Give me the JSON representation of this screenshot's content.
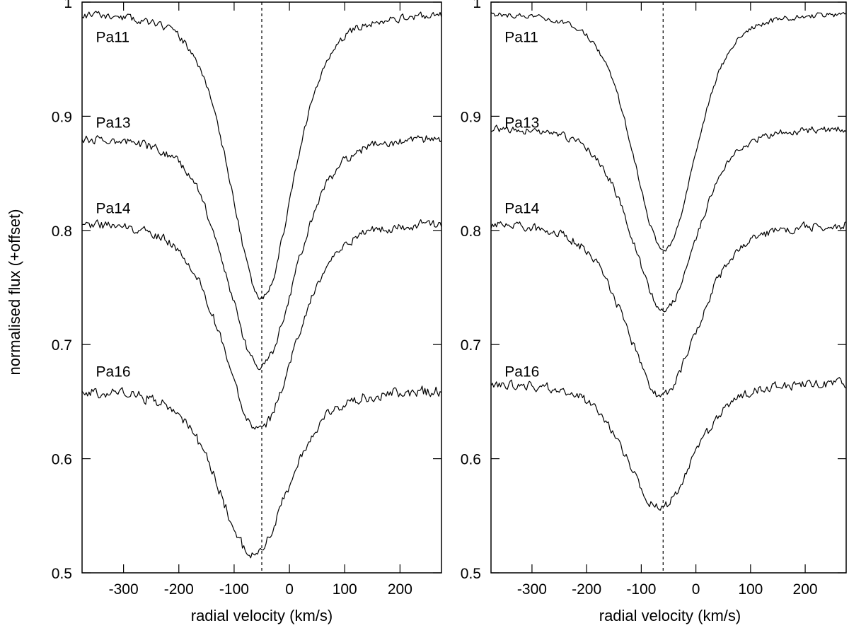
{
  "figure": {
    "ylabel": "normalised flux (+offset)"
  },
  "chart_data": [
    {
      "type": "line",
      "xlabel": "radial velocity (km/s)",
      "ylabel": "normalised flux (+offset)",
      "xlim": [
        -375,
        275
      ],
      "ylim": [
        0.5,
        1.0
      ],
      "xticks": [
        -300,
        -200,
        -100,
        0,
        100,
        200
      ],
      "yticks": [
        0.5,
        0.6,
        0.7,
        0.8,
        0.9,
        1.0
      ],
      "ytick_labels": [
        "0.5",
        "0.6",
        "0.7",
        "0.8",
        "0.9",
        "1"
      ],
      "grid": false,
      "reference_line_x": -50,
      "series": [
        {
          "name": "Pa11",
          "label_at": [
            -350,
            0.965
          ],
          "continuum": 0.993,
          "min_flux": 0.74,
          "center": -50,
          "halfwidth": 95,
          "noise": 0.004,
          "seed": 11
        },
        {
          "name": "Pa13",
          "label_at": [
            -350,
            0.89
          ],
          "continuum": 0.885,
          "min_flux": 0.68,
          "center": -52,
          "halfwidth": 105,
          "noise": 0.005,
          "seed": 13
        },
        {
          "name": "Pa14",
          "label_at": [
            -350,
            0.815
          ],
          "continuum": 0.81,
          "min_flux": 0.625,
          "center": -55,
          "halfwidth": 110,
          "noise": 0.005,
          "seed": 14
        },
        {
          "name": "Pa16",
          "label_at": [
            -350,
            0.672
          ],
          "continuum": 0.662,
          "min_flux": 0.515,
          "center": -65,
          "halfwidth": 105,
          "noise": 0.006,
          "seed": 16
        }
      ]
    },
    {
      "type": "line",
      "xlabel": "radial velocity (km/s)",
      "xlim": [
        -375,
        275
      ],
      "ylim": [
        0.5,
        1.0
      ],
      "xticks": [
        -300,
        -200,
        -100,
        0,
        100,
        200
      ],
      "yticks": [
        0.5,
        0.6,
        0.7,
        0.8,
        0.9,
        1.0
      ],
      "ytick_labels": [
        "0.5",
        "0.6",
        "0.7",
        "0.8",
        "0.9",
        "1"
      ],
      "grid": false,
      "reference_line_x": -60,
      "series": [
        {
          "name": "Pa11",
          "label_at": [
            -350,
            0.965
          ],
          "continuum": 0.993,
          "min_flux": 0.782,
          "center": -58,
          "halfwidth": 95,
          "noise": 0.003,
          "seed": 21
        },
        {
          "name": "Pa13",
          "label_at": [
            -350,
            0.89
          ],
          "continuum": 0.892,
          "min_flux": 0.73,
          "center": -58,
          "halfwidth": 100,
          "noise": 0.004,
          "seed": 23
        },
        {
          "name": "Pa14",
          "label_at": [
            -350,
            0.815
          ],
          "continuum": 0.808,
          "min_flux": 0.655,
          "center": -62,
          "halfwidth": 110,
          "noise": 0.005,
          "seed": 24
        },
        {
          "name": "Pa16",
          "label_at": [
            -350,
            0.672
          ],
          "continuum": 0.668,
          "min_flux": 0.557,
          "center": -65,
          "halfwidth": 105,
          "noise": 0.005,
          "seed": 26
        }
      ]
    }
  ]
}
